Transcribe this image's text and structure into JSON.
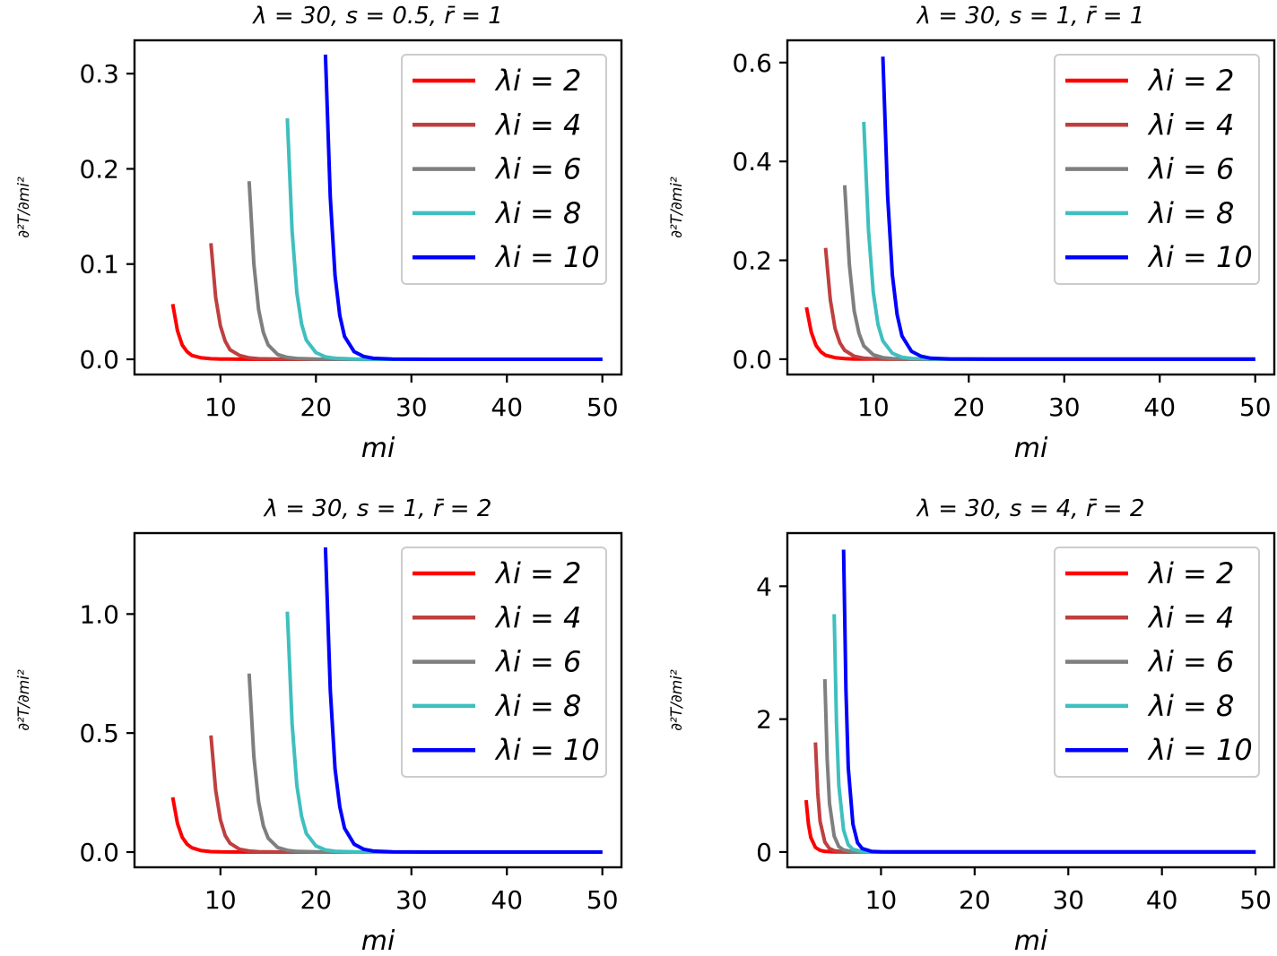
{
  "chart_data": [
    {
      "type": "line",
      "title": "λ = 30, s = 0.5, r̄ = 1",
      "xlabel": "mi",
      "ylabel": "∂²T/∂mi²",
      "xlim": [
        1,
        52
      ],
      "ylim": [
        -0.016,
        0.335
      ],
      "xticks": [
        10,
        20,
        30,
        40,
        50
      ],
      "yticks": [
        0.0,
        0.1,
        0.2,
        0.3
      ],
      "ytick_labels": [
        "0.0",
        "0.1",
        "0.2",
        "0.3"
      ],
      "legend": "top-right",
      "series": [
        {
          "name": "λi = 2",
          "color": "#ff0000",
          "x": [
            5,
            5.5,
            6,
            6.5,
            7,
            8,
            9,
            10,
            12,
            15,
            20,
            30,
            50
          ],
          "y": [
            0.058,
            0.03,
            0.015,
            0.008,
            0.004,
            0.0015,
            0.0006,
            0.0003,
            0.0001,
            0,
            0,
            0,
            0
          ]
        },
        {
          "name": "λi = 4",
          "color": "#bf3f3f",
          "x": [
            9,
            9.5,
            10,
            10.5,
            11,
            12,
            13,
            14,
            16,
            20,
            30,
            50
          ],
          "y": [
            0.122,
            0.065,
            0.035,
            0.019,
            0.01,
            0.004,
            0.0015,
            0.0006,
            0.0002,
            0,
            0,
            0
          ]
        },
        {
          "name": "λi = 6",
          "color": "#7f7f7f",
          "x": [
            13,
            13.5,
            14,
            14.5,
            15,
            16,
            17,
            18,
            20,
            25,
            30,
            50
          ],
          "y": [
            0.187,
            0.1,
            0.052,
            0.028,
            0.015,
            0.005,
            0.002,
            0.0008,
            0.0002,
            0,
            0,
            0
          ]
        },
        {
          "name": "λi = 8",
          "color": "#3fbfbf",
          "x": [
            17,
            17.5,
            18,
            18.5,
            19,
            20,
            21,
            22,
            24,
            28,
            35,
            50
          ],
          "y": [
            0.253,
            0.135,
            0.07,
            0.037,
            0.02,
            0.007,
            0.0025,
            0.001,
            0.0003,
            0,
            0,
            0
          ]
        },
        {
          "name": "λi = 10",
          "color": "#0000ff",
          "x": [
            21,
            21.5,
            22,
            22.5,
            23,
            24,
            25,
            26,
            28,
            32,
            40,
            50
          ],
          "y": [
            0.32,
            0.17,
            0.088,
            0.046,
            0.024,
            0.008,
            0.003,
            0.001,
            0.0003,
            0,
            0,
            0
          ]
        }
      ]
    },
    {
      "type": "line",
      "title": "λ = 30, s = 1, r̄ = 1",
      "xlabel": "mi",
      "ylabel": "∂²T/∂mi²",
      "xlim": [
        1,
        52
      ],
      "ylim": [
        -0.031,
        0.645
      ],
      "xticks": [
        10,
        20,
        30,
        40,
        50
      ],
      "yticks": [
        0.0,
        0.2,
        0.4,
        0.6
      ],
      "ytick_labels": [
        "0.0",
        "0.2",
        "0.4",
        "0.6"
      ],
      "legend": "top-right",
      "series": [
        {
          "name": "λi = 2",
          "color": "#ff0000",
          "x": [
            3,
            3.5,
            4,
            4.5,
            5,
            6,
            7,
            8,
            10,
            15,
            30,
            50
          ],
          "y": [
            0.105,
            0.055,
            0.028,
            0.015,
            0.008,
            0.003,
            0.001,
            0.0004,
            0.0001,
            0,
            0,
            0
          ]
        },
        {
          "name": "λi = 4",
          "color": "#bf3f3f",
          "x": [
            5,
            5.5,
            6,
            6.5,
            7,
            8,
            9,
            10,
            12,
            16,
            30,
            50
          ],
          "y": [
            0.225,
            0.12,
            0.062,
            0.033,
            0.018,
            0.006,
            0.002,
            0.0008,
            0.0002,
            0,
            0,
            0
          ]
        },
        {
          "name": "λi = 6",
          "color": "#7f7f7f",
          "x": [
            7,
            7.5,
            8,
            8.5,
            9,
            10,
            11,
            12,
            14,
            18,
            30,
            50
          ],
          "y": [
            0.352,
            0.19,
            0.098,
            0.052,
            0.027,
            0.009,
            0.003,
            0.0012,
            0.0003,
            0,
            0,
            0
          ]
        },
        {
          "name": "λi = 8",
          "color": "#3fbfbf",
          "x": [
            9,
            9.5,
            10,
            10.5,
            11,
            12,
            13,
            14,
            16,
            20,
            30,
            50
          ],
          "y": [
            0.48,
            0.26,
            0.135,
            0.07,
            0.037,
            0.012,
            0.004,
            0.0015,
            0.0004,
            0,
            0,
            0
          ]
        },
        {
          "name": "λi = 10",
          "color": "#0000ff",
          "x": [
            11,
            11.5,
            12,
            12.5,
            13,
            14,
            15,
            16,
            18,
            22,
            30,
            50
          ],
          "y": [
            0.612,
            0.33,
            0.17,
            0.09,
            0.047,
            0.016,
            0.006,
            0.002,
            0.0005,
            0,
            0,
            0
          ]
        }
      ]
    },
    {
      "type": "line",
      "title": "λ = 30, s = 1, r̄ = 2",
      "xlabel": "mi",
      "ylabel": "∂²T/∂mi²",
      "xlim": [
        1,
        52
      ],
      "ylim": [
        -0.064,
        1.34
      ],
      "xticks": [
        10,
        20,
        30,
        40,
        50
      ],
      "yticks": [
        0.0,
        0.5,
        1.0
      ],
      "ytick_labels": [
        "0.0",
        "0.5",
        "1.0"
      ],
      "legend": "top-right",
      "series": [
        {
          "name": "λi = 2",
          "color": "#ff0000",
          "x": [
            5,
            5.5,
            6,
            6.5,
            7,
            8,
            9,
            10,
            12,
            15,
            30,
            50
          ],
          "y": [
            0.23,
            0.12,
            0.062,
            0.033,
            0.018,
            0.006,
            0.002,
            0.0008,
            0.0002,
            0,
            0,
            0
          ]
        },
        {
          "name": "λi = 4",
          "color": "#bf3f3f",
          "x": [
            9,
            9.5,
            10,
            10.5,
            11,
            12,
            13,
            14,
            16,
            20,
            30,
            50
          ],
          "y": [
            0.49,
            0.26,
            0.135,
            0.07,
            0.037,
            0.012,
            0.004,
            0.0015,
            0.0004,
            0,
            0,
            0
          ]
        },
        {
          "name": "λi = 6",
          "color": "#7f7f7f",
          "x": [
            13,
            13.5,
            14,
            14.5,
            15,
            16,
            17,
            18,
            20,
            25,
            30,
            50
          ],
          "y": [
            0.75,
            0.4,
            0.21,
            0.11,
            0.058,
            0.019,
            0.007,
            0.0025,
            0.0006,
            0,
            0,
            0
          ]
        },
        {
          "name": "λi = 8",
          "color": "#3fbfbf",
          "x": [
            17,
            17.5,
            18,
            18.5,
            19,
            20,
            21,
            22,
            24,
            28,
            35,
            50
          ],
          "y": [
            1.01,
            0.54,
            0.28,
            0.15,
            0.078,
            0.026,
            0.009,
            0.0033,
            0.0008,
            0,
            0,
            0
          ]
        },
        {
          "name": "λi = 10",
          "color": "#0000ff",
          "x": [
            21,
            21.5,
            22,
            22.5,
            23,
            24,
            25,
            26,
            28,
            32,
            40,
            50
          ],
          "y": [
            1.28,
            0.68,
            0.35,
            0.19,
            0.1,
            0.033,
            0.012,
            0.0042,
            0.001,
            0,
            0,
            0
          ]
        }
      ]
    },
    {
      "type": "line",
      "title": "λ = 30, s = 4, r̄ = 2",
      "xlabel": "mi",
      "ylabel": "∂²T/∂mi²",
      "xlim": [
        0,
        52
      ],
      "ylim": [
        -0.23,
        4.8
      ],
      "xticks": [
        10,
        20,
        30,
        40,
        50
      ],
      "yticks": [
        0,
        2,
        4
      ],
      "ytick_labels": [
        "0",
        "2",
        "4"
      ],
      "legend": "top-right",
      "series": [
        {
          "name": "λi = 2",
          "color": "#ff0000",
          "x": [
            2,
            2.25,
            2.5,
            3,
            3.5,
            4,
            5,
            6,
            8,
            12,
            30,
            50
          ],
          "y": [
            0.78,
            0.42,
            0.22,
            0.07,
            0.025,
            0.009,
            0.0015,
            0.0003,
            0,
            0,
            0,
            0
          ]
        },
        {
          "name": "λi = 4",
          "color": "#bf3f3f",
          "x": [
            3,
            3.25,
            3.5,
            4,
            4.5,
            5,
            6,
            7,
            9,
            12,
            30,
            50
          ],
          "y": [
            1.65,
            0.89,
            0.46,
            0.15,
            0.052,
            0.019,
            0.003,
            0.0006,
            0,
            0,
            0,
            0
          ]
        },
        {
          "name": "λi = 6",
          "color": "#7f7f7f",
          "x": [
            4,
            4.25,
            4.5,
            5,
            5.5,
            6,
            7,
            8,
            10,
            12,
            30,
            50
          ],
          "y": [
            2.6,
            1.4,
            0.73,
            0.24,
            0.082,
            0.03,
            0.005,
            0.001,
            0,
            0,
            0,
            0
          ]
        },
        {
          "name": "λi = 8",
          "color": "#3fbfbf",
          "x": [
            5,
            5.25,
            5.5,
            6,
            6.5,
            7,
            8,
            9,
            11,
            14,
            30,
            50
          ],
          "y": [
            3.58,
            1.93,
            1.0,
            0.33,
            0.11,
            0.041,
            0.007,
            0.0014,
            0,
            0,
            0,
            0
          ]
        },
        {
          "name": "λi = 10",
          "color": "#0000ff",
          "x": [
            6,
            6.25,
            6.5,
            7,
            7.5,
            8,
            9,
            10,
            12,
            15,
            30,
            50
          ],
          "y": [
            4.55,
            2.45,
            1.27,
            0.42,
            0.14,
            0.052,
            0.009,
            0.0018,
            0,
            0,
            0,
            0
          ]
        }
      ]
    }
  ]
}
